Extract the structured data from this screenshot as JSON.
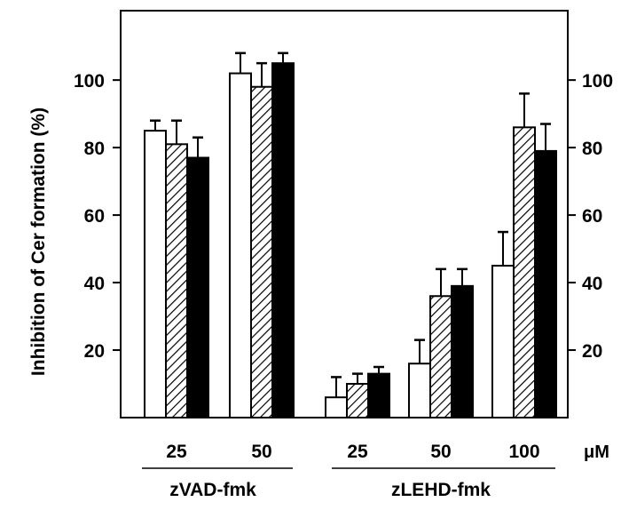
{
  "chart_data": {
    "type": "bar",
    "title": "",
    "ylabel": "Inhibition of Cer formation (%)",
    "xlabel": "",
    "x_unit": "μM",
    "ylim": [
      0,
      120
    ],
    "yticks": [
      20,
      40,
      60,
      80,
      100
    ],
    "grid": false,
    "legend": "none",
    "groups": [
      {
        "label": "zVAD-fmk",
        "categories": [
          "25",
          "50"
        ]
      },
      {
        "label": "zLEHD-fmk",
        "categories": [
          "25",
          "50",
          "100"
        ]
      }
    ],
    "categories": [
      "25",
      "50",
      "25",
      "50",
      "100"
    ],
    "series": [
      {
        "fill": "white",
        "values": [
          85,
          102,
          6,
          16,
          45
        ],
        "errors": [
          3,
          6,
          6,
          7,
          10
        ]
      },
      {
        "fill": "hatched",
        "values": [
          81,
          98,
          10,
          36,
          86
        ],
        "errors": [
          7,
          7,
          3,
          8,
          10
        ]
      },
      {
        "fill": "black",
        "values": [
          77,
          105,
          13,
          39,
          79
        ],
        "errors": [
          6,
          3,
          2,
          5,
          8
        ]
      }
    ]
  }
}
